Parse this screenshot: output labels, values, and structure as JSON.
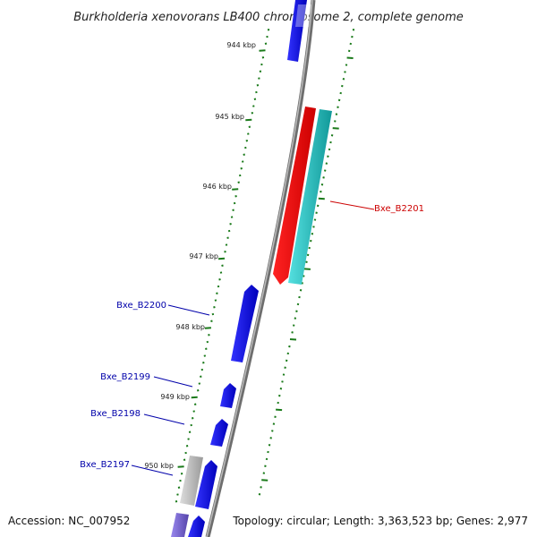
{
  "title": "Burkholderia xenovorans LB400 chromosome 2, complete genome",
  "accession_label": "Accession: NC_007952",
  "summary_label": "Topology: circular; Length: 3,363,523 bp; Genes: 2,977",
  "ticks": [
    "944 kbp",
    "945 kbp",
    "946 kbp",
    "947 kbp",
    "948 kbp",
    "949 kbp",
    "950 kbp"
  ],
  "gene_labels": [
    {
      "id": "Bxe_B2201",
      "color": "#cc0000"
    },
    {
      "id": "Bxe_B2200",
      "color": "#0000aa"
    },
    {
      "id": "Bxe_B2199",
      "color": "#0000aa"
    },
    {
      "id": "Bxe_B2198",
      "color": "#0000aa"
    },
    {
      "id": "Bxe_B2197",
      "color": "#0000aa"
    }
  ],
  "colors": {
    "forward_gene": "#0000ee",
    "reverse_gene": "#ee0000",
    "cds_reverse": "#22cccc",
    "backbone": "#888888",
    "tick": "#1a7a1a",
    "other_gene": "#bbbbbb",
    "purple_gene": "#7766cc"
  }
}
